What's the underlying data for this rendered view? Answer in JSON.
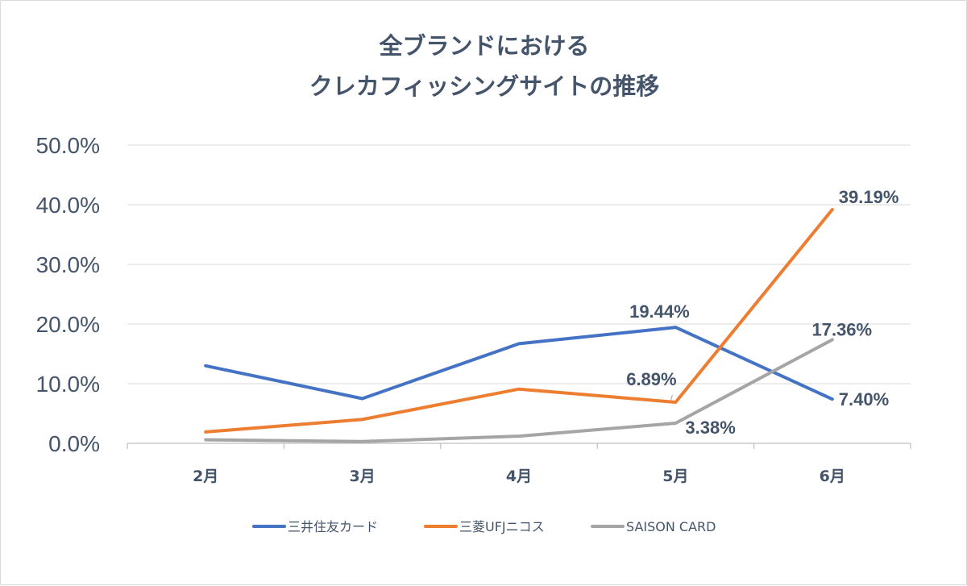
{
  "chart_data": {
    "type": "line",
    "title_lines": [
      "全ブランドにおける",
      "クレカフィッシングサイトの推移"
    ],
    "categories": [
      "2月",
      "3月",
      "4月",
      "5月",
      "6月"
    ],
    "yticks": [
      "0.0%",
      "10.0%",
      "20.0%",
      "30.0%",
      "40.0%",
      "50.0%"
    ],
    "ylim": [
      0,
      50
    ],
    "grid": true,
    "legend_position": "bottom",
    "series": [
      {
        "name": "三井住友カード",
        "color": "#4472c4",
        "values": [
          13.0,
          7.5,
          16.7,
          19.44,
          7.4
        ]
      },
      {
        "name": "三菱UFJニコス",
        "color": "#ed7d31",
        "values": [
          1.9,
          4.0,
          9.1,
          6.89,
          39.19
        ]
      },
      {
        "name": "SAISON CARD",
        "color": "#a5a5a5",
        "values": [
          0.6,
          0.3,
          1.2,
          3.38,
          17.36
        ]
      }
    ],
    "data_labels": [
      {
        "series": 0,
        "index": 3,
        "text": "19.44%"
      },
      {
        "series": 0,
        "index": 4,
        "text": "7.40%"
      },
      {
        "series": 1,
        "index": 3,
        "text": "6.89%"
      },
      {
        "series": 1,
        "index": 4,
        "text": "39.19%"
      },
      {
        "series": 2,
        "index": 3,
        "text": "3.38%"
      },
      {
        "series": 2,
        "index": 4,
        "text": "17.36%"
      }
    ]
  }
}
